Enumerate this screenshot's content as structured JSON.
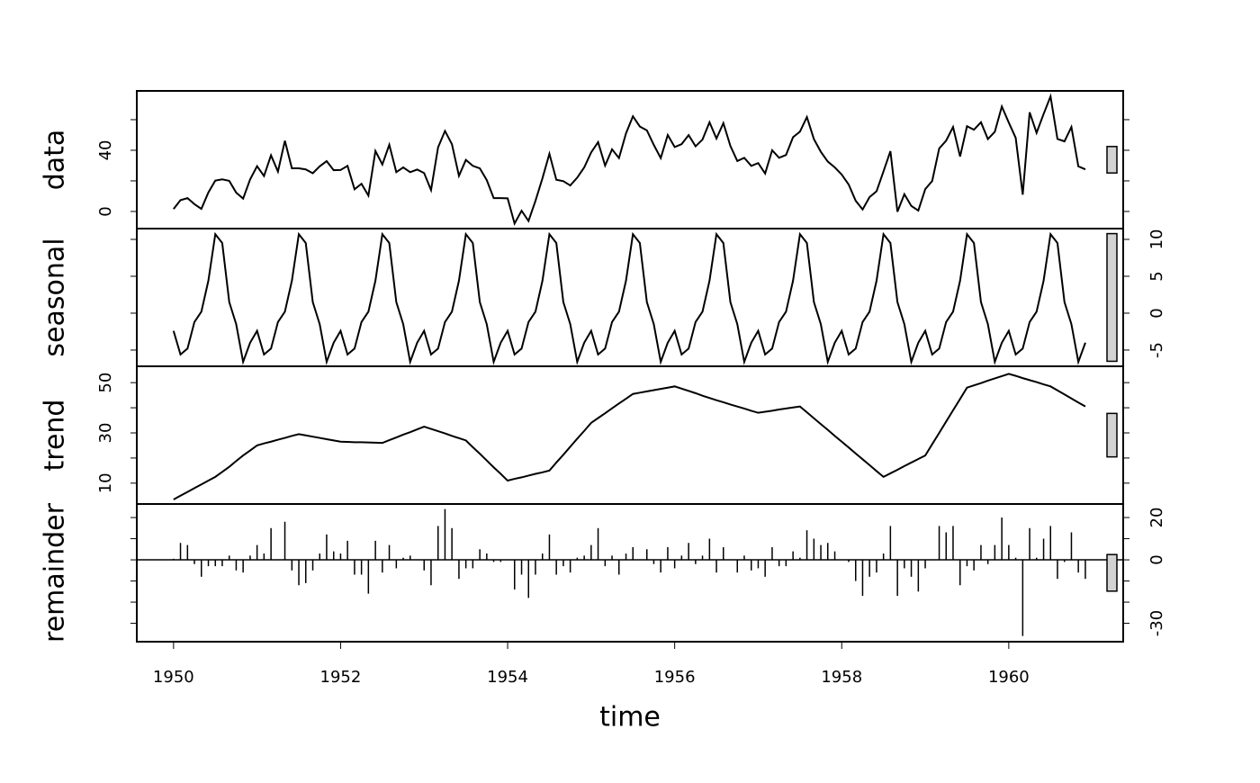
{
  "chart_data": {
    "type": "stl",
    "x_label": "time",
    "xlim": [
      1949.56,
      1961.37
    ],
    "xticks": [
      1950,
      1952,
      1954,
      1956,
      1958,
      1960
    ],
    "x": [
      1950,
      1950.083,
      1950.167,
      1950.25,
      1950.333,
      1950.417,
      1950.5,
      1950.583,
      1950.667,
      1950.75,
      1950.833,
      1950.917,
      1951,
      1951.083,
      1951.167,
      1951.25,
      1951.333,
      1951.417,
      1951.5,
      1951.583,
      1951.667,
      1951.75,
      1951.833,
      1951.917,
      1952,
      1952.083,
      1952.167,
      1952.25,
      1952.333,
      1952.417,
      1952.5,
      1952.583,
      1952.667,
      1952.75,
      1952.833,
      1952.917,
      1953,
      1953.083,
      1953.167,
      1953.25,
      1953.333,
      1953.417,
      1953.5,
      1953.583,
      1953.667,
      1953.75,
      1953.833,
      1953.917,
      1954,
      1954.083,
      1954.167,
      1954.25,
      1954.333,
      1954.417,
      1954.5,
      1954.583,
      1954.667,
      1954.75,
      1954.833,
      1954.917,
      1955,
      1955.083,
      1955.167,
      1955.25,
      1955.333,
      1955.417,
      1955.5,
      1955.583,
      1955.667,
      1955.75,
      1955.833,
      1955.917,
      1956,
      1956.083,
      1956.167,
      1956.25,
      1956.333,
      1956.417,
      1956.5,
      1956.583,
      1956.667,
      1956.75,
      1956.833,
      1956.917,
      1957,
      1957.083,
      1957.167,
      1957.25,
      1957.333,
      1957.417,
      1957.5,
      1957.583,
      1957.667,
      1957.75,
      1957.833,
      1957.917,
      1958,
      1958.083,
      1958.167,
      1958.25,
      1958.333,
      1958.417,
      1958.5,
      1958.583,
      1958.667,
      1958.75,
      1958.833,
      1958.917,
      1959,
      1959.083,
      1959.167,
      1959.25,
      1959.333,
      1959.417,
      1959.5,
      1959.583,
      1959.667,
      1959.75,
      1959.833,
      1959.917,
      1960,
      1960.083,
      1960.167,
      1960.25,
      1960.333,
      1960.417,
      1960.5,
      1960.583,
      1960.667,
      1960.75,
      1960.833,
      1960.917
    ],
    "panels": [
      {
        "name": "data",
        "type": "line",
        "ylim": [
          -11.2,
          78.8
        ],
        "yticks": [
          0,
          40
        ],
        "minor_yticks": [
          20,
          60
        ],
        "tick_side": "left",
        "values": [
          1.6,
          7.4,
          8.7,
          4.8,
          1.7,
          12.4,
          20.2,
          21,
          20,
          12.3,
          8.4,
          21,
          29.6,
          23.2,
          36.7,
          26.1,
          46.2,
          28.2,
          28.2,
          27.5,
          25,
          29.5,
          32.9,
          27,
          27.1,
          29.8,
          14.5,
          18.1,
          10.4,
          39.5,
          30.7,
          43.6,
          25.7,
          28.8,
          25.7,
          27.4,
          25.1,
          14,
          41.9,
          52.6,
          44,
          23.3,
          33.7,
          29.8,
          28.2,
          20.5,
          8.7,
          8.7,
          8.6,
          -7.9,
          0.5,
          -6.2,
          6.9,
          21.7,
          37.7,
          20.7,
          19.8,
          17,
          22.1,
          28.8,
          38.6,
          45.3,
          30,
          40.6,
          34.9,
          51,
          62.2,
          55.5,
          53,
          43.5,
          34.9,
          50,
          42.1,
          44,
          49.9,
          42.6,
          47,
          58.3,
          47.7,
          57.7,
          42.8,
          33,
          35.1,
          29.8,
          31.6,
          24.8,
          40,
          35.1,
          36.9,
          48.5,
          52.2,
          61.7,
          47.3,
          39,
          32.6,
          28.8,
          24.1,
          17.6,
          7,
          1.3,
          9.4,
          13.2,
          26.2,
          39.4,
          -0.2,
          11.3,
          3.6,
          0.6,
          14.6,
          19.9,
          41.2,
          46.3,
          55.2,
          35.9,
          55.7,
          53.4,
          58.3,
          47.3,
          52.1,
          68.6,
          58.1,
          48.1,
          11,
          64.8,
          51.4,
          63.7,
          75.2,
          47.4,
          45.8,
          55.2,
          29.5,
          27.5
        ]
      },
      {
        "name": "seasonal",
        "type": "line",
        "ylim": [
          -7.2,
          11.46
        ],
        "yticks": [
          -5,
          0,
          5,
          10
        ],
        "minor_yticks": [],
        "tick_side": "right",
        "values": [
          -2.4,
          -5.6,
          -4.8,
          -1.2,
          0.2,
          4.4,
          10.7,
          9.5,
          1.5,
          -1.5,
          -6.6,
          -4.0,
          -2.4,
          -5.6,
          -4.8,
          -1.2,
          0.2,
          4.4,
          10.7,
          9.5,
          1.5,
          -1.5,
          -6.6,
          -4.0,
          -2.4,
          -5.6,
          -4.8,
          -1.2,
          0.2,
          4.4,
          10.7,
          9.5,
          1.5,
          -1.5,
          -6.6,
          -4.0,
          -2.4,
          -5.6,
          -4.8,
          -1.2,
          0.2,
          4.4,
          10.7,
          9.5,
          1.5,
          -1.5,
          -6.6,
          -4.0,
          -2.4,
          -5.6,
          -4.8,
          -1.2,
          0.2,
          4.4,
          10.7,
          9.5,
          1.5,
          -1.5,
          -6.6,
          -4.0,
          -2.4,
          -5.6,
          -4.8,
          -1.2,
          0.2,
          4.4,
          10.7,
          9.5,
          1.5,
          -1.5,
          -6.6,
          -4.0,
          -2.4,
          -5.6,
          -4.8,
          -1.2,
          0.2,
          4.4,
          10.7,
          9.5,
          1.5,
          -1.5,
          -6.6,
          -4.0,
          -2.4,
          -5.6,
          -4.8,
          -1.2,
          0.2,
          4.4,
          10.7,
          9.5,
          1.5,
          -1.5,
          -6.6,
          -4.0,
          -2.4,
          -5.6,
          -4.8,
          -1.2,
          0.2,
          4.4,
          10.7,
          9.5,
          1.5,
          -1.5,
          -6.6,
          -4.0,
          -2.4,
          -5.6,
          -4.8,
          -1.2,
          0.2,
          4.4,
          10.7,
          9.5,
          1.5,
          -1.5,
          -6.6,
          -4.0,
          -2.4,
          -5.6,
          -4.8,
          -1.2,
          0.2,
          4.4,
          10.7,
          9.5,
          1.5,
          -1.5,
          -6.6,
          -4.0
        ]
      },
      {
        "name": "trend",
        "type": "line",
        "ylim": [
          1.7,
          56.5
        ],
        "yticks": [
          10,
          30,
          50
        ],
        "minor_yticks": [
          20,
          40
        ],
        "tick_side": "left",
        "values": [
          3.5,
          5,
          6.5,
          8,
          9.5,
          11,
          12.5,
          14.5,
          16.5,
          18.8,
          21,
          23,
          25,
          25.8,
          26.5,
          27.3,
          28,
          28.8,
          29.5,
          29,
          28.5,
          28,
          27.5,
          27,
          26.5,
          26.4,
          26.3,
          26.3,
          26.2,
          26.1,
          26,
          27.1,
          28.2,
          29.3,
          30.3,
          31.4,
          32.5,
          31.6,
          30.7,
          29.8,
          28.8,
          27.9,
          27,
          24.3,
          21.7,
          19,
          16.3,
          13.7,
          11,
          11.7,
          12.3,
          13,
          13.7,
          14.3,
          15,
          18.2,
          21.3,
          24.5,
          27.7,
          30.8,
          34,
          35.9,
          37.8,
          39.8,
          41.7,
          43.6,
          45.5,
          46,
          46.5,
          47,
          47.5,
          48,
          48.5,
          47.6,
          46.7,
          45.8,
          44.8,
          43.9,
          43,
          42.2,
          41.3,
          40.5,
          39.7,
          38.8,
          38,
          38.4,
          38.8,
          39.3,
          39.7,
          40.1,
          40.5,
          38.2,
          35.8,
          33.5,
          31.2,
          28.8,
          26.5,
          24.2,
          21.8,
          19.5,
          17.2,
          14.8,
          12.5,
          13.9,
          15.3,
          16.8,
          18.2,
          19.6,
          21,
          25.5,
          30,
          34.5,
          39,
          43.5,
          48,
          48.9,
          49.8,
          50.8,
          51.7,
          52.6,
          53.5,
          52.7,
          51.8,
          51,
          50.2,
          49.3,
          48.5,
          46.9,
          45.3,
          43.7,
          42.1,
          40.5
        ]
      },
      {
        "name": "remainder",
        "type": "spike",
        "ylim": [
          -38.7,
          26.4
        ],
        "yticks": [
          -30,
          0,
          20
        ],
        "minor_yticks": [
          -20,
          -10,
          10
        ],
        "tick_side": "right",
        "values": [
          0.5,
          8,
          7,
          -2,
          -8,
          -3,
          -3,
          -3,
          2,
          -5,
          -6,
          2,
          7,
          3,
          15,
          0,
          18,
          -5,
          -12,
          -11,
          -5,
          3,
          12,
          4,
          3,
          9,
          -7,
          -7,
          -16,
          9,
          -6,
          7,
          -4,
          1,
          2,
          0,
          -5,
          -12,
          16,
          24,
          15,
          -9,
          -4,
          -4,
          5,
          3,
          -1,
          -1,
          0,
          -14,
          -7,
          -18,
          -7,
          3,
          12,
          -7,
          -3,
          -6,
          1,
          2,
          7,
          15,
          -3,
          2,
          -7,
          3,
          6,
          0,
          5,
          -2,
          -6,
          6,
          -4,
          2,
          8,
          -2,
          2,
          10,
          -6,
          6,
          0,
          -6,
          2,
          -5,
          -4,
          -8,
          6,
          -3,
          -3,
          4,
          1,
          14,
          10,
          7,
          8,
          4,
          0,
          -1,
          -10,
          -17,
          -8,
          -6,
          3,
          16,
          -17,
          -4,
          -8,
          -15,
          -4,
          0,
          16,
          13,
          16,
          -12,
          -3,
          -5,
          7,
          -2,
          7,
          20,
          7,
          1,
          -36,
          15,
          1,
          10,
          16,
          -9,
          -1,
          13,
          -6,
          -9
        ]
      }
    ]
  }
}
